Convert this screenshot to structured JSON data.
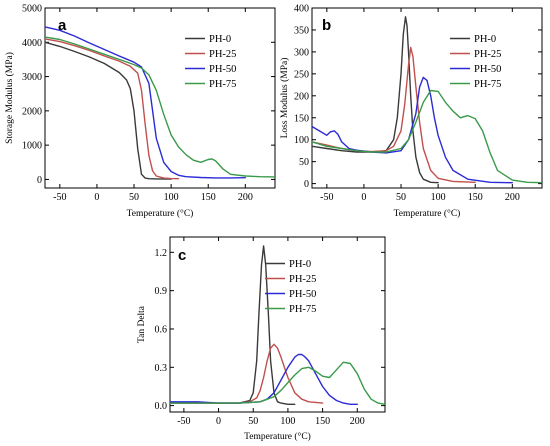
{
  "chart_data": [
    {
      "type": "line",
      "panel": "a",
      "xlabel": "Temperature (°C)",
      "ylabel": "Storage Modulus (MPa)",
      "xlim": [
        -70,
        240
      ],
      "ylim": [
        -250,
        5000
      ],
      "xticks": [
        -50,
        0,
        50,
        100,
        150,
        200
      ],
      "yticks": [
        0,
        1000,
        2000,
        3000,
        4000,
        5000
      ],
      "legend_position": "top-right",
      "series": [
        {
          "name": "PH-0",
          "color": "#3a3a3a",
          "x": [
            -70,
            -50,
            -30,
            -10,
            10,
            30,
            40,
            45,
            50,
            55,
            60,
            65,
            70,
            80,
            100
          ],
          "y": [
            4000,
            3880,
            3730,
            3570,
            3380,
            3120,
            2900,
            2650,
            2000,
            900,
            150,
            40,
            20,
            15,
            10
          ]
        },
        {
          "name": "PH-25",
          "color": "#c0504d",
          "x": [
            -70,
            -50,
            -30,
            -10,
            10,
            30,
            45,
            55,
            60,
            65,
            70,
            75,
            80,
            90,
            100,
            110
          ],
          "y": [
            4100,
            4020,
            3900,
            3760,
            3600,
            3450,
            3300,
            3100,
            2600,
            1600,
            700,
            250,
            100,
            40,
            25,
            20
          ]
        },
        {
          "name": "PH-50",
          "color": "#2b2bd6",
          "x": [
            -70,
            -50,
            -30,
            -10,
            10,
            30,
            50,
            60,
            70,
            75,
            80,
            90,
            100,
            110,
            120,
            140,
            160,
            180,
            200
          ],
          "y": [
            4450,
            4350,
            4180,
            3980,
            3790,
            3600,
            3420,
            3280,
            2800,
            2000,
            1200,
            500,
            230,
            120,
            80,
            55,
            45,
            45,
            50
          ]
        },
        {
          "name": "PH-75",
          "color": "#3a9a4a",
          "x": [
            -70,
            -50,
            -30,
            -10,
            10,
            30,
            50,
            60,
            70,
            80,
            90,
            100,
            110,
            120,
            130,
            140,
            150,
            155,
            160,
            170,
            180,
            200,
            220,
            240
          ],
          "y": [
            4150,
            4080,
            3950,
            3800,
            3650,
            3500,
            3350,
            3250,
            3050,
            2600,
            1900,
            1300,
            950,
            720,
            560,
            500,
            580,
            600,
            540,
            300,
            150,
            100,
            80,
            75
          ]
        }
      ]
    },
    {
      "type": "line",
      "panel": "b",
      "xlabel": "Temperature (°C)",
      "ylabel": "Loss Modulus (MPa)",
      "xlim": [
        -70,
        240
      ],
      "ylim": [
        -10,
        400
      ],
      "xticks": [
        -50,
        0,
        50,
        100,
        150,
        200
      ],
      "yticks": [
        0,
        50,
        100,
        150,
        200,
        250,
        300,
        350,
        400
      ],
      "legend_position": "top-right",
      "series": [
        {
          "name": "PH-0",
          "color": "#3a3a3a",
          "x": [
            -70,
            -50,
            -30,
            -10,
            10,
            30,
            40,
            45,
            50,
            53,
            56,
            58,
            60,
            63,
            66,
            70,
            75,
            80,
            90,
            100
          ],
          "y": [
            85,
            80,
            75,
            72,
            72,
            75,
            100,
            150,
            250,
            340,
            380,
            360,
            300,
            200,
            120,
            60,
            25,
            10,
            3,
            2
          ]
        },
        {
          "name": "PH-25",
          "color": "#c0504d",
          "x": [
            -70,
            -50,
            -30,
            -10,
            10,
            30,
            40,
            50,
            55,
            60,
            63,
            66,
            70,
            75,
            80,
            90,
            100,
            120,
            150
          ],
          "y": [
            95,
            88,
            80,
            75,
            73,
            75,
            85,
            120,
            180,
            270,
            310,
            290,
            220,
            140,
            80,
            30,
            12,
            5,
            3
          ]
        },
        {
          "name": "PH-50",
          "color": "#2b2bd6",
          "x": [
            -70,
            -60,
            -50,
            -45,
            -40,
            -35,
            -30,
            -20,
            -10,
            10,
            30,
            50,
            60,
            70,
            75,
            80,
            85,
            90,
            95,
            100,
            110,
            120,
            140,
            170,
            200
          ],
          "y": [
            130,
            120,
            110,
            118,
            120,
            112,
            95,
            80,
            76,
            72,
            70,
            75,
            100,
            160,
            220,
            242,
            235,
            200,
            150,
            110,
            60,
            30,
            10,
            3,
            2
          ]
        },
        {
          "name": "PH-75",
          "color": "#3a9a4a",
          "x": [
            -70,
            -50,
            -30,
            -10,
            10,
            30,
            50,
            60,
            70,
            80,
            90,
            100,
            110,
            120,
            130,
            140,
            150,
            160,
            170,
            180,
            200,
            220,
            240
          ],
          "y": [
            95,
            85,
            80,
            75,
            72,
            72,
            80,
            100,
            140,
            185,
            212,
            210,
            185,
            165,
            150,
            155,
            148,
            120,
            70,
            30,
            8,
            3,
            2
          ]
        }
      ]
    },
    {
      "type": "line",
      "panel": "c",
      "xlabel": "Temperature (°C)",
      "ylabel": "Tan Delta",
      "xlim": [
        -70,
        240
      ],
      "ylim": [
        -0.05,
        1.32
      ],
      "xticks": [
        -50,
        0,
        50,
        100,
        150,
        200
      ],
      "yticks": [
        0.0,
        0.3,
        0.6,
        0.9,
        1.2
      ],
      "ytick_labels": [
        "0.0",
        "0.3",
        "0.6",
        "0.9",
        "1.2"
      ],
      "legend_position": "top-right",
      "series": [
        {
          "name": "PH-0",
          "color": "#3a3a3a",
          "x": [
            -70,
            -30,
            0,
            30,
            45,
            50,
            55,
            58,
            62,
            65,
            68,
            72,
            75,
            80,
            85,
            90,
            100,
            110
          ],
          "y": [
            0.02,
            0.02,
            0.02,
            0.02,
            0.04,
            0.1,
            0.35,
            0.7,
            1.1,
            1.25,
            1.1,
            0.7,
            0.35,
            0.1,
            0.03,
            0.02,
            0.01,
            0.01
          ]
        },
        {
          "name": "PH-25",
          "color": "#c0504d",
          "x": [
            -70,
            -30,
            0,
            30,
            45,
            55,
            60,
            65,
            70,
            75,
            80,
            85,
            90,
            95,
            100,
            110,
            120,
            130,
            150
          ],
          "y": [
            0.02,
            0.02,
            0.02,
            0.02,
            0.03,
            0.06,
            0.12,
            0.22,
            0.35,
            0.45,
            0.48,
            0.45,
            0.38,
            0.3,
            0.22,
            0.1,
            0.05,
            0.03,
            0.02
          ]
        },
        {
          "name": "PH-50",
          "color": "#2b2bd6",
          "x": [
            -70,
            -30,
            0,
            30,
            60,
            70,
            80,
            90,
            100,
            110,
            115,
            120,
            125,
            130,
            140,
            150,
            160,
            170,
            180,
            190,
            200
          ],
          "y": [
            0.03,
            0.03,
            0.02,
            0.02,
            0.03,
            0.05,
            0.1,
            0.2,
            0.3,
            0.38,
            0.4,
            0.4,
            0.38,
            0.35,
            0.25,
            0.15,
            0.08,
            0.04,
            0.02,
            0.01,
            0.01
          ]
        },
        {
          "name": "PH-75",
          "color": "#3a9a4a",
          "x": [
            -70,
            -30,
            0,
            30,
            60,
            80,
            90,
            100,
            110,
            120,
            130,
            140,
            150,
            160,
            170,
            180,
            190,
            200,
            210,
            220,
            230,
            240
          ],
          "y": [
            0.02,
            0.02,
            0.02,
            0.02,
            0.03,
            0.07,
            0.12,
            0.18,
            0.24,
            0.29,
            0.3,
            0.27,
            0.23,
            0.22,
            0.28,
            0.34,
            0.33,
            0.25,
            0.13,
            0.05,
            0.02,
            0.01
          ]
        }
      ]
    }
  ]
}
